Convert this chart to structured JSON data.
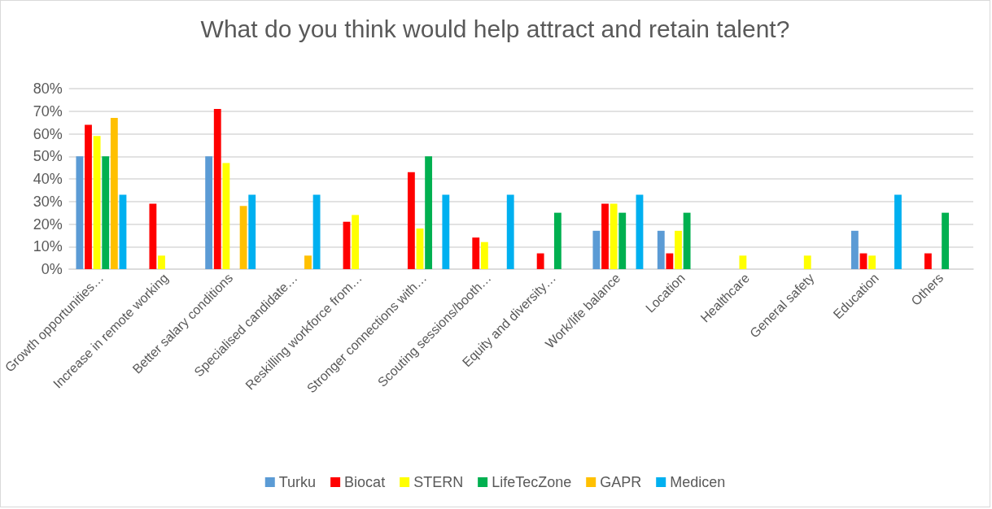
{
  "chart_data": {
    "type": "bar",
    "title": "What do you think would help attract and retain talent?",
    "categories": [
      "Growth opportunities…",
      "Increase in remote working",
      "Better salary conditions",
      "Specialised candidate…",
      "Reskilling workforce from…",
      "Stronger connections with…",
      "Scouting sessions/booth…",
      "Equity and diversity…",
      "Work/life balance",
      "Location",
      "Healthcare",
      "General safety",
      "Education",
      "Others"
    ],
    "series": [
      {
        "name": "Turku",
        "color": "#5b9bd5",
        "values": [
          50,
          null,
          50,
          null,
          null,
          null,
          null,
          null,
          17,
          17,
          null,
          null,
          17,
          null
        ]
      },
      {
        "name": "Biocat",
        "color": "#ff0000",
        "values": [
          64,
          29,
          71,
          null,
          21,
          43,
          14,
          7,
          29,
          7,
          null,
          null,
          7,
          7
        ]
      },
      {
        "name": "STERN",
        "color": "#ffff00",
        "values": [
          59,
          6,
          47,
          null,
          24,
          18,
          12,
          null,
          29,
          17,
          6,
          6,
          6,
          null
        ]
      },
      {
        "name": "LifeTecZone",
        "color": "#00b050",
        "values": [
          50,
          null,
          null,
          null,
          null,
          50,
          null,
          25,
          25,
          25,
          null,
          null,
          null,
          25
        ]
      },
      {
        "name": "GAPR",
        "color": "#ffc000",
        "values": [
          67,
          null,
          28,
          6,
          null,
          null,
          null,
          null,
          null,
          null,
          null,
          null,
          null,
          null
        ]
      },
      {
        "name": "Medicen",
        "color": "#00b0f0",
        "values": [
          33,
          null,
          33,
          33,
          null,
          33,
          33,
          null,
          33,
          null,
          null,
          null,
          33,
          null
        ]
      }
    ],
    "ylim": [
      0,
      80
    ],
    "yticks": [
      {
        "value": 0,
        "label": "0%"
      },
      {
        "value": 10,
        "label": "10%"
      },
      {
        "value": 20,
        "label": "20%"
      },
      {
        "value": 30,
        "label": "30%"
      },
      {
        "value": 40,
        "label": "40%"
      },
      {
        "value": 50,
        "label": "50%"
      },
      {
        "value": 60,
        "label": "60%"
      },
      {
        "value": 70,
        "label": "70%"
      },
      {
        "value": 80,
        "label": "80%"
      }
    ],
    "grid": "y",
    "legend": "bottom"
  }
}
